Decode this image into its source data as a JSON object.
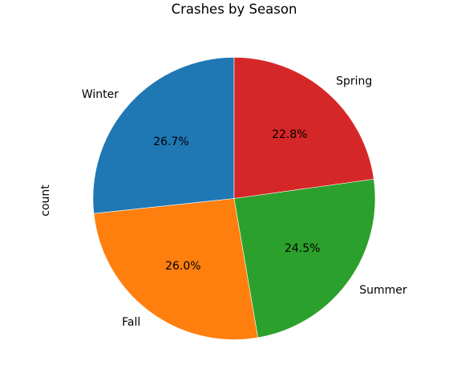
{
  "chart_data": {
    "type": "pie",
    "title": "Crashes by Season",
    "ylabel": "count",
    "start_angle_deg": 90,
    "direction": "counterclockwise",
    "slices": [
      {
        "label": "Winter",
        "percent": 26.7,
        "pct_text": "26.7%",
        "color": "#1f77b4"
      },
      {
        "label": "Fall",
        "percent": 26.0,
        "pct_text": "26.0%",
        "color": "#ff7f0e"
      },
      {
        "label": "Summer",
        "percent": 24.5,
        "pct_text": "24.5%",
        "color": "#2ca02c"
      },
      {
        "label": "Spring",
        "percent": 22.8,
        "pct_text": "22.8%",
        "color": "#d62728"
      }
    ]
  }
}
